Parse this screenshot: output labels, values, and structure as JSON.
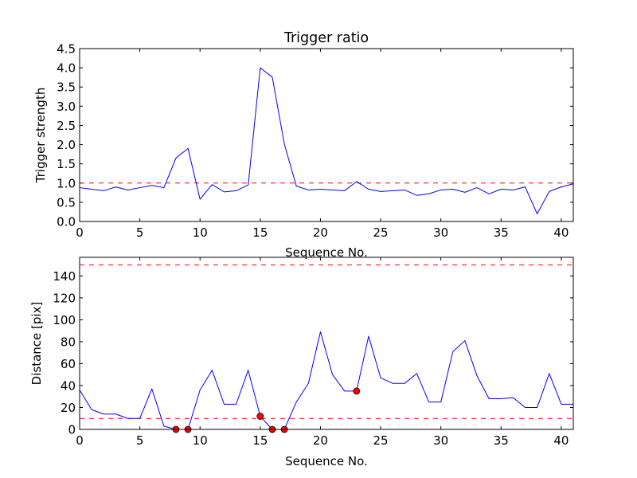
{
  "chart_data": [
    {
      "type": "line",
      "title": "Trigger ratio",
      "xlabel": "Sequence No.",
      "ylabel": "Trigger strength",
      "xlim": [
        0,
        41
      ],
      "ylim": [
        0,
        4.5
      ],
      "xticks": [
        0,
        5,
        10,
        15,
        20,
        25,
        30,
        35,
        40
      ],
      "yticks": [
        0,
        0.5,
        1.0,
        1.5,
        2.0,
        2.5,
        3.0,
        3.5,
        4.0,
        4.5
      ],
      "xtick_labels": [
        "0",
        "5",
        "10",
        "15",
        "20",
        "25",
        "30",
        "35",
        "40"
      ],
      "ytick_labels": [
        "0.0",
        "0.5",
        "1.0",
        "1.5",
        "2.0",
        "2.5",
        "3.0",
        "3.5",
        "4.0",
        "4.5"
      ],
      "series": [
        {
          "name": "trigger strength",
          "color": "#0000ff",
          "x": [
            0,
            1,
            2,
            3,
            4,
            5,
            6,
            7,
            8,
            9,
            10,
            11,
            12,
            13,
            14,
            15,
            16,
            17,
            18,
            19,
            20,
            21,
            22,
            23,
            24,
            25,
            26,
            27,
            28,
            29,
            30,
            31,
            32,
            33,
            34,
            35,
            36,
            37,
            38,
            39,
            40,
            41
          ],
          "values": [
            0.88,
            0.84,
            0.8,
            0.9,
            0.82,
            0.88,
            0.94,
            0.88,
            1.65,
            1.9,
            0.58,
            0.96,
            0.77,
            0.8,
            0.95,
            4.0,
            3.76,
            2.02,
            0.92,
            0.82,
            0.84,
            0.82,
            0.8,
            1.04,
            0.84,
            0.78,
            0.8,
            0.82,
            0.68,
            0.72,
            0.82,
            0.84,
            0.76,
            0.88,
            0.72,
            0.84,
            0.82,
            0.9,
            0.2,
            0.78,
            0.9,
            0.98
          ]
        }
      ],
      "hlines": [
        {
          "y": 1.0,
          "color": "#ff0000",
          "style": "dashed"
        }
      ]
    },
    {
      "type": "line",
      "title": "",
      "xlabel": "Sequence No.",
      "ylabel": "Distance [pix]",
      "xlim": [
        0,
        41
      ],
      "ylim": [
        0,
        157
      ],
      "xticks": [
        0,
        5,
        10,
        15,
        20,
        25,
        30,
        35,
        40
      ],
      "yticks": [
        0,
        20,
        40,
        60,
        80,
        100,
        120,
        140
      ],
      "xtick_labels": [
        "0",
        "5",
        "10",
        "15",
        "20",
        "25",
        "30",
        "35",
        "40"
      ],
      "ytick_labels": [
        "0",
        "20",
        "40",
        "60",
        "80",
        "100",
        "120",
        "140"
      ],
      "series": [
        {
          "name": "distance",
          "color": "#0000ff",
          "x": [
            0,
            1,
            2,
            3,
            4,
            5,
            6,
            7,
            8,
            9,
            10,
            11,
            12,
            13,
            14,
            15,
            16,
            17,
            18,
            19,
            20,
            21,
            22,
            23,
            24,
            25,
            26,
            27,
            28,
            29,
            30,
            31,
            32,
            33,
            34,
            35,
            36,
            37,
            38,
            39,
            40,
            41
          ],
          "values": [
            36,
            18,
            14,
            14,
            10,
            10,
            37,
            3,
            0,
            0,
            36,
            54,
            23,
            23,
            54,
            12,
            0,
            0,
            25,
            42,
            89,
            50,
            35,
            35,
            85,
            47,
            42,
            42,
            51,
            25,
            25,
            71,
            81,
            49,
            28,
            28,
            29,
            20,
            20,
            51,
            23,
            23
          ]
        }
      ],
      "markers": {
        "color": "#ff0000",
        "points": [
          {
            "x": 8,
            "y": 0
          },
          {
            "x": 9,
            "y": 0
          },
          {
            "x": 15,
            "y": 12
          },
          {
            "x": 16,
            "y": 0
          },
          {
            "x": 17,
            "y": 0
          },
          {
            "x": 23,
            "y": 35
          }
        ]
      },
      "hlines": [
        {
          "y": 10,
          "color": "#ff0000",
          "style": "dashed"
        },
        {
          "y": 150,
          "color": "#ff0000",
          "style": "dashed"
        }
      ]
    }
  ]
}
